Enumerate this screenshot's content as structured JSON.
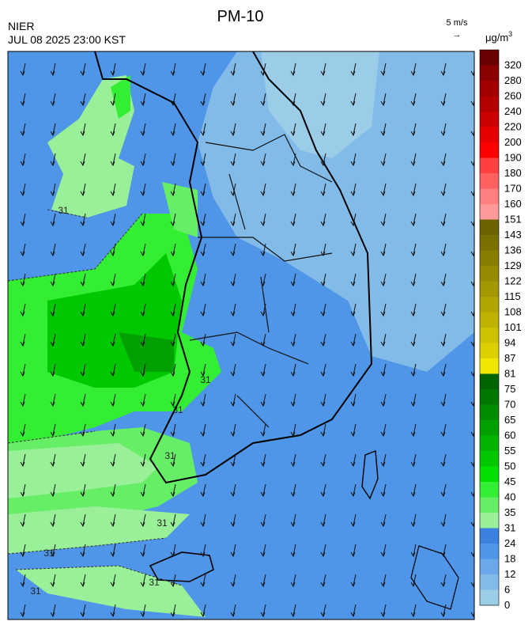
{
  "header": {
    "agency": "NIER",
    "datetime": "JUL 08 2025 23:00 KST",
    "title": "PM-10",
    "wind_scale": "5 m/s",
    "wind_arrow": "→"
  },
  "colorbar": {
    "unit": "μg/m",
    "unit_sup": "3",
    "levels": [
      "320",
      "280",
      "260",
      "240",
      "220",
      "200",
      "190",
      "180",
      "170",
      "160",
      "151",
      "143",
      "136",
      "129",
      "122",
      "115",
      "108",
      "101",
      "94",
      "87",
      "81",
      "75",
      "70",
      "65",
      "60",
      "55",
      "50",
      "45",
      "40",
      "35",
      "31",
      "24",
      "18",
      "12",
      "6",
      "0"
    ],
    "colors": [
      "#6b0000",
      "#8b0000",
      "#a00000",
      "#b40000",
      "#cc0000",
      "#e60000",
      "#ff0000",
      "#ff4040",
      "#ff6060",
      "#ff7f7f",
      "#ff9999",
      "#6b6300",
      "#7a7000",
      "#877d00",
      "#958a00",
      "#a39800",
      "#b0a500",
      "#bfb300",
      "#cdc100",
      "#dcd000",
      "#f0e600",
      "#006400",
      "#007800",
      "#008c00",
      "#00a000",
      "#00b400",
      "#00c800",
      "#00e000",
      "#33ee33",
      "#66ee66",
      "#99f099",
      "#3b82e0",
      "#4f95e8",
      "#6aa8ea",
      "#82bbe8",
      "#9ccde8"
    ]
  },
  "map": {
    "contour_labels": [
      "31",
      "31",
      "31",
      "31",
      "31",
      "31",
      "31",
      "31"
    ]
  }
}
